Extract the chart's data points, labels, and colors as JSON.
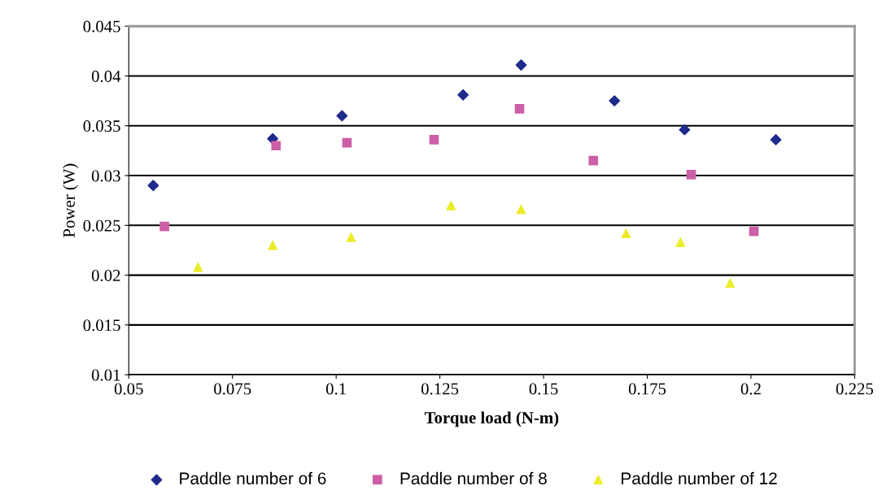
{
  "chart_data": {
    "type": "scatter",
    "xlabel": "Torque load (N-m)",
    "ylabel": "Power (W)",
    "xlim": [
      0.05,
      0.225
    ],
    "xticks": [
      0.05,
      0.075,
      0.1,
      0.125,
      0.15,
      0.175,
      0.2,
      0.225
    ],
    "ylim": [
      0.01,
      0.045
    ],
    "yticks": [
      0.01,
      0.015,
      0.02,
      0.025,
      0.03,
      0.035,
      0.04,
      0.045
    ],
    "grid": "y",
    "legend": "bottom",
    "series": [
      {
        "name": "Paddle number of 6",
        "color": "#1f2a8c",
        "marker": "diamond",
        "x": [
          0.0559,
          0.0847,
          0.1014,
          0.1306,
          0.1446,
          0.1671,
          0.184,
          0.206
        ],
        "values": [
          0.029,
          0.0337,
          0.036,
          0.0381,
          0.0411,
          0.0375,
          0.0346,
          0.0336
        ]
      },
      {
        "name": "Paddle number of 8",
        "color": "#cc5fa8",
        "marker": "square",
        "x": [
          0.0586,
          0.0855,
          0.1026,
          0.1236,
          0.1442,
          0.162,
          0.1856,
          0.2007
        ],
        "values": [
          0.0249,
          0.033,
          0.0333,
          0.0336,
          0.0367,
          0.0315,
          0.0301,
          0.0244
        ]
      },
      {
        "name": "Paddle number of 12",
        "color": "#ecec2a",
        "marker": "triangle",
        "x": [
          0.0667,
          0.0847,
          0.1036,
          0.1277,
          0.1446,
          0.1699,
          0.183,
          0.195
        ],
        "values": [
          0.0208,
          0.023,
          0.0238,
          0.027,
          0.0266,
          0.0242,
          0.0233,
          0.0192
        ]
      }
    ]
  }
}
